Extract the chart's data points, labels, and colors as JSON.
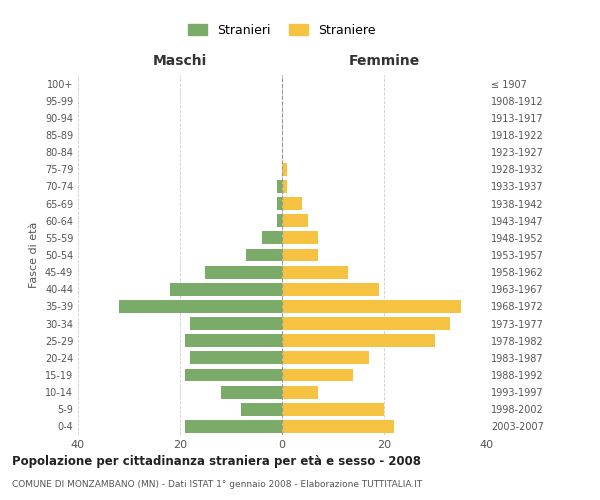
{
  "age_groups": [
    "0-4",
    "5-9",
    "10-14",
    "15-19",
    "20-24",
    "25-29",
    "30-34",
    "35-39",
    "40-44",
    "45-49",
    "50-54",
    "55-59",
    "60-64",
    "65-69",
    "70-74",
    "75-79",
    "80-84",
    "85-89",
    "90-94",
    "95-99",
    "100+"
  ],
  "birth_years": [
    "2003-2007",
    "1998-2002",
    "1993-1997",
    "1988-1992",
    "1983-1987",
    "1978-1982",
    "1973-1977",
    "1968-1972",
    "1963-1967",
    "1958-1962",
    "1953-1957",
    "1948-1952",
    "1943-1947",
    "1938-1942",
    "1933-1937",
    "1928-1932",
    "1923-1927",
    "1918-1922",
    "1913-1917",
    "1908-1912",
    "≤ 1907"
  ],
  "maschi": [
    19,
    8,
    12,
    19,
    18,
    19,
    18,
    32,
    22,
    15,
    7,
    4,
    1,
    1,
    1,
    0,
    0,
    0,
    0,
    0,
    0
  ],
  "femmine": [
    22,
    20,
    7,
    14,
    17,
    30,
    33,
    35,
    19,
    13,
    7,
    7,
    5,
    4,
    1,
    1,
    0,
    0,
    0,
    0,
    0
  ],
  "color_maschi": "#7aab68",
  "color_femmine": "#f5c242",
  "title_main": "Popolazione per cittadinanza straniera per età e sesso - 2008",
  "title_sub": "COMUNE DI MONZAMBANO (MN) - Dati ISTAT 1° gennaio 2008 - Elaborazione TUTTITALIA.IT",
  "xlabel_left": "Maschi",
  "xlabel_right": "Femmine",
  "ylabel_left": "Fasce di età",
  "legend_maschi": "Stranieri",
  "legend_femmine": "Straniere",
  "xlim": 40,
  "background_color": "#ffffff",
  "grid_color": "#cccccc"
}
